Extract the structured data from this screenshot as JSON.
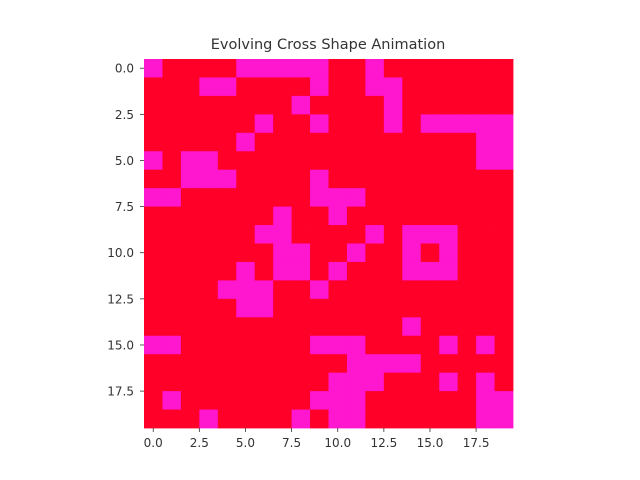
{
  "chart_data": {
    "type": "heatmap",
    "title": "Evolving Cross Shape Animation",
    "xlabel": "",
    "ylabel": "",
    "x_ticks": [
      "0.0",
      "2.5",
      "5.0",
      "7.5",
      "10.0",
      "12.5",
      "15.0",
      "17.5"
    ],
    "y_ticks": [
      "0.0",
      "2.5",
      "5.0",
      "7.5",
      "10.0",
      "12.5",
      "15.0",
      "17.5"
    ],
    "tick_values": [
      0,
      2.5,
      5,
      7.5,
      10,
      12.5,
      15,
      17.5
    ],
    "xlim": [
      -0.5,
      19.5
    ],
    "ylim": [
      19.5,
      -0.5
    ],
    "grid": false,
    "colors": {
      "0": "#ff0028",
      "1": "#ff16cf"
    },
    "matrix": [
      [
        1,
        0,
        0,
        0,
        0,
        1,
        1,
        1,
        1,
        1,
        0,
        0,
        1,
        0,
        0,
        0,
        0,
        0,
        0,
        0
      ],
      [
        0,
        0,
        0,
        1,
        1,
        0,
        0,
        0,
        0,
        1,
        0,
        0,
        1,
        1,
        0,
        0,
        0,
        0,
        0,
        0
      ],
      [
        0,
        0,
        0,
        0,
        0,
        0,
        0,
        0,
        1,
        0,
        0,
        0,
        0,
        1,
        0,
        0,
        0,
        0,
        0,
        0
      ],
      [
        0,
        0,
        0,
        0,
        0,
        0,
        1,
        0,
        0,
        1,
        0,
        0,
        0,
        1,
        0,
        1,
        1,
        1,
        1,
        1
      ],
      [
        0,
        0,
        0,
        0,
        0,
        1,
        0,
        0,
        0,
        0,
        0,
        0,
        0,
        0,
        0,
        0,
        0,
        0,
        1,
        1
      ],
      [
        1,
        0,
        1,
        1,
        0,
        0,
        0,
        0,
        0,
        0,
        0,
        0,
        0,
        0,
        0,
        0,
        0,
        0,
        1,
        1
      ],
      [
        0,
        0,
        1,
        1,
        1,
        0,
        0,
        0,
        0,
        1,
        0,
        0,
        0,
        0,
        0,
        0,
        0,
        0,
        0,
        0
      ],
      [
        1,
        1,
        0,
        0,
        0,
        0,
        0,
        0,
        0,
        1,
        1,
        1,
        0,
        0,
        0,
        0,
        0,
        0,
        0,
        0
      ],
      [
        0,
        0,
        0,
        0,
        0,
        0,
        0,
        1,
        0,
        0,
        1,
        0,
        0,
        0,
        0,
        0,
        0,
        0,
        0,
        0
      ],
      [
        0,
        0,
        0,
        0,
        0,
        0,
        1,
        1,
        0,
        0,
        0,
        0,
        1,
        0,
        1,
        1,
        1,
        0,
        0,
        0
      ],
      [
        0,
        0,
        0,
        0,
        0,
        0,
        0,
        1,
        1,
        0,
        0,
        1,
        0,
        0,
        1,
        0,
        1,
        0,
        0,
        0
      ],
      [
        0,
        0,
        0,
        0,
        0,
        1,
        0,
        1,
        1,
        0,
        1,
        0,
        0,
        0,
        1,
        1,
        1,
        0,
        0,
        0
      ],
      [
        0,
        0,
        0,
        0,
        1,
        1,
        1,
        0,
        0,
        1,
        0,
        0,
        0,
        0,
        0,
        0,
        0,
        0,
        0,
        0
      ],
      [
        0,
        0,
        0,
        0,
        0,
        1,
        1,
        0,
        0,
        0,
        0,
        0,
        0,
        0,
        0,
        0,
        0,
        0,
        0,
        0
      ],
      [
        0,
        0,
        0,
        0,
        0,
        0,
        0,
        0,
        0,
        0,
        0,
        0,
        0,
        0,
        1,
        0,
        0,
        0,
        0,
        0
      ],
      [
        1,
        1,
        0,
        0,
        0,
        0,
        0,
        0,
        0,
        1,
        1,
        1,
        0,
        0,
        0,
        0,
        1,
        0,
        1,
        0
      ],
      [
        0,
        0,
        0,
        0,
        0,
        0,
        0,
        0,
        0,
        0,
        0,
        1,
        1,
        1,
        1,
        0,
        0,
        0,
        0,
        0
      ],
      [
        0,
        0,
        0,
        0,
        0,
        0,
        0,
        0,
        0,
        0,
        1,
        1,
        1,
        0,
        0,
        0,
        1,
        0,
        1,
        0
      ],
      [
        0,
        1,
        0,
        0,
        0,
        0,
        0,
        0,
        0,
        1,
        1,
        1,
        0,
        0,
        0,
        0,
        0,
        0,
        1,
        1
      ],
      [
        0,
        0,
        0,
        1,
        0,
        0,
        0,
        0,
        1,
        0,
        1,
        1,
        0,
        0,
        0,
        0,
        0,
        0,
        1,
        1
      ]
    ]
  }
}
